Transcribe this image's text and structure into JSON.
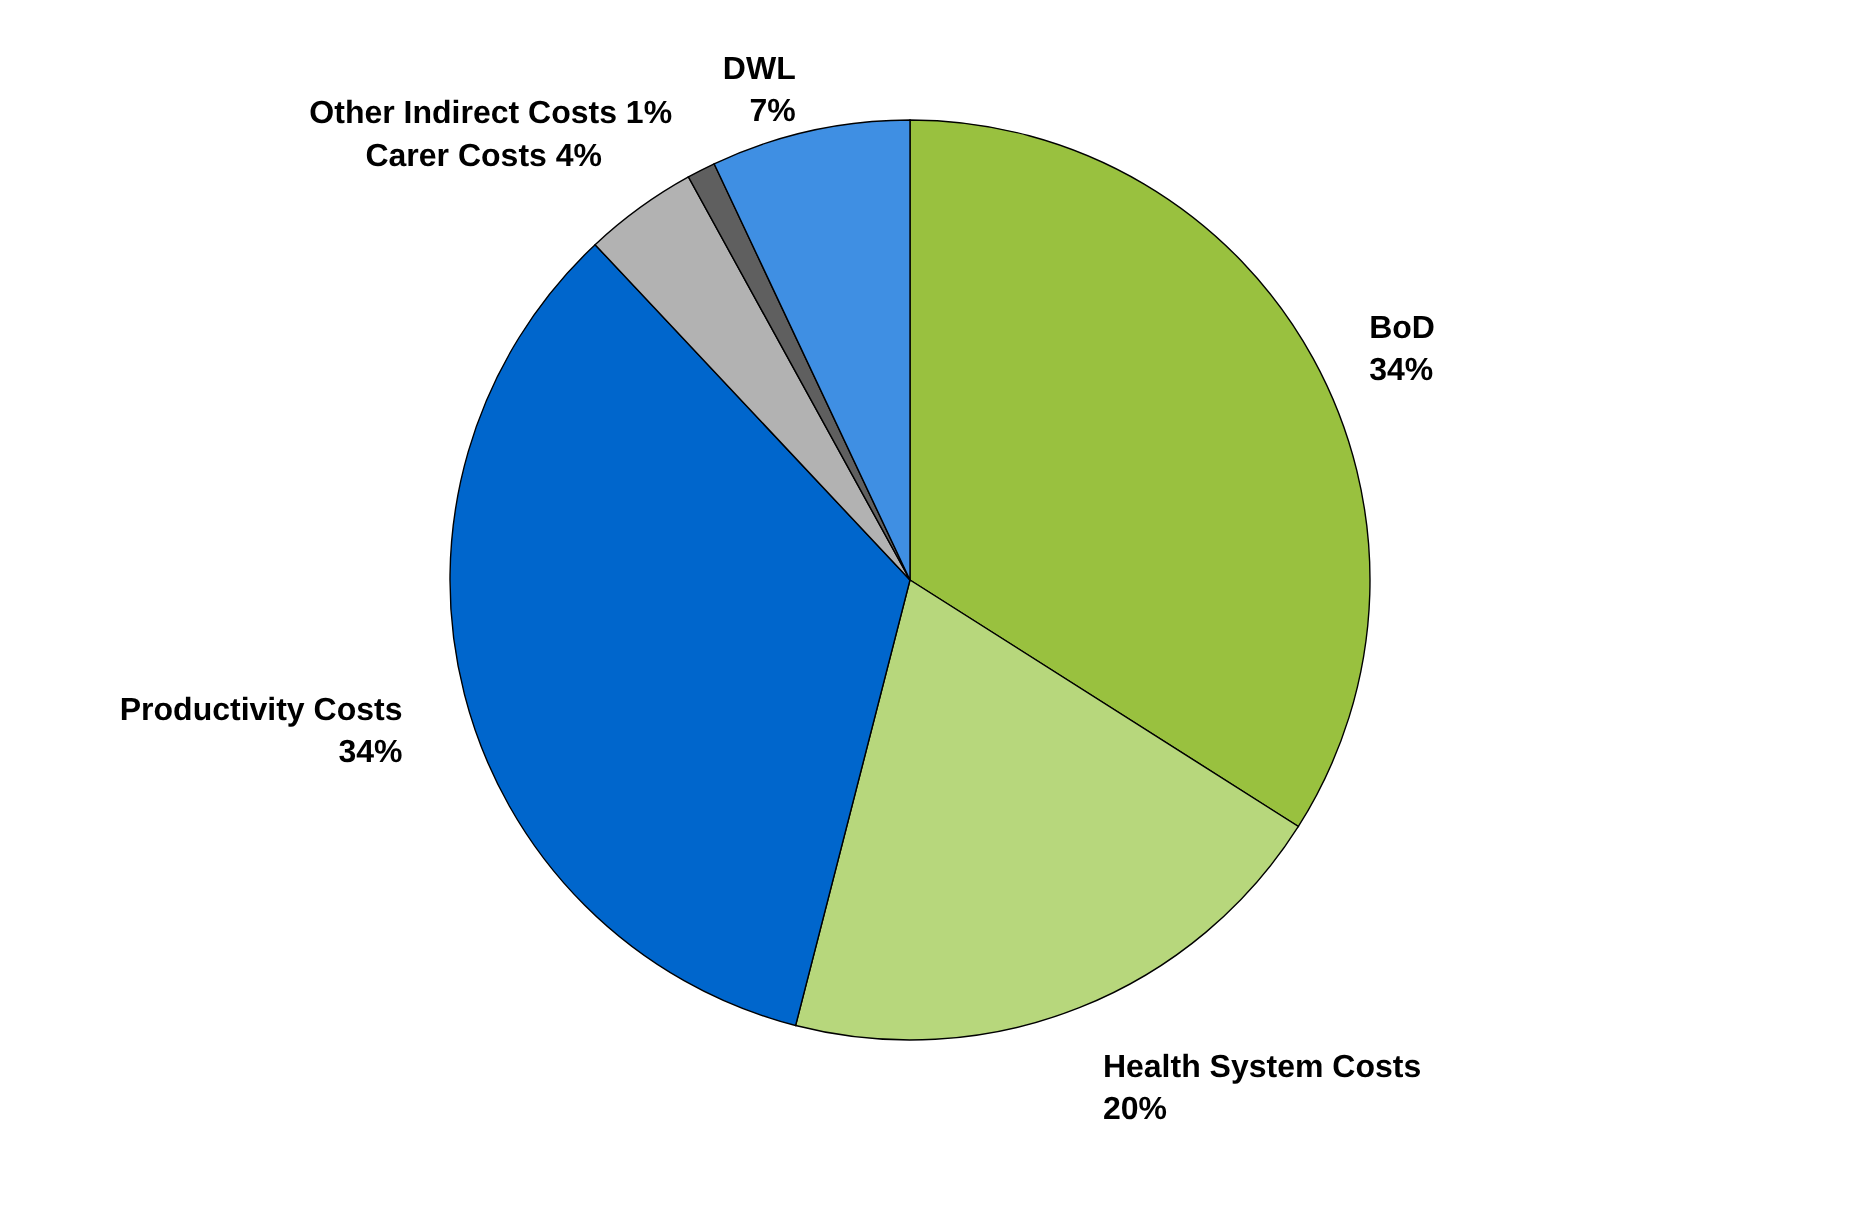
{
  "chart_data": {
    "type": "pie",
    "categories": [
      "BoD",
      "Health System Costs",
      "Productivity Costs",
      "Carer Costs",
      "Other Indirect Costs",
      "DWL"
    ],
    "values": [
      34,
      20,
      34,
      4,
      1,
      7
    ],
    "value_labels": [
      "34%",
      "20%",
      "34%",
      "4%",
      "1%",
      "7%"
    ],
    "colors": [
      "#99c13f",
      "#b7d77c",
      "#0066cc",
      "#b2b2b2",
      "#5f5f5f",
      "#3f8fe3"
    ],
    "legend": false
  }
}
